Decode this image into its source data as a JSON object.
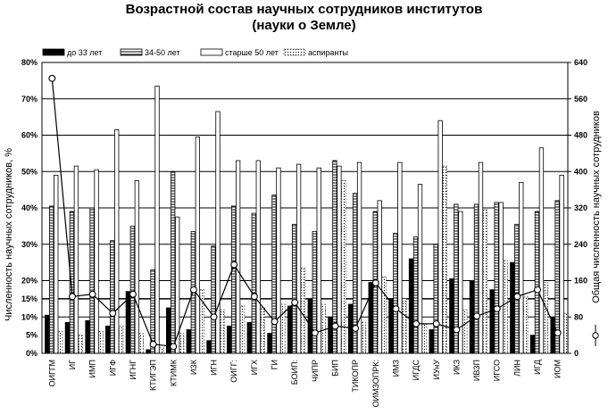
{
  "chart_data": {
    "type": "bar",
    "title": [
      "Возрастной состав научных сотрудников институтов",
      "(науки о Земле)"
    ],
    "ylabel": "Численность научных сотрудников, %",
    "y2label": "Общая численность научных сотрудников",
    "ylim": [
      0,
      80
    ],
    "y2lim": [
      0,
      640
    ],
    "yticks": [
      "0%",
      "5%",
      "10%",
      "15%",
      "20%",
      "30%",
      "40%",
      "50%",
      "60%",
      "70%",
      "80%"
    ],
    "y2ticks": [
      "0",
      "80",
      "160",
      "240",
      "320",
      "400",
      "480",
      "560",
      "640"
    ],
    "reference_line": 15,
    "categories": [
      "ОИГГМ",
      "ИГ",
      "ИМП",
      "ИГФ",
      "ИГНГ",
      "КТИГЭП",
      "КТИМК",
      "ИЗК",
      "ИГН",
      "ОИГГ:",
      "ИГХ",
      "ГИ",
      "БОИП:",
      "ЧИПР",
      "БИП",
      "ТИКОПР",
      "ОИМЗОПРК:",
      "ИМЗ",
      "ИГДС",
      "ИУнУ",
      "ИКЗ",
      "ИВЗП",
      "ИГСО",
      "ЛИН",
      "ИГД",
      "ИОМ"
    ],
    "series": [
      {
        "name": "до 33 лет",
        "values": [
          10.5,
          8.5,
          9,
          7.5,
          17,
          1,
          12.5,
          6.5,
          3.5,
          7.5,
          8.5,
          5.5,
          13,
          15,
          10,
          13.5,
          19.5,
          15,
          26,
          6.5,
          20.5,
          20,
          17.5,
          25,
          5,
          10
        ]
      },
      {
        "name": "34-50 лет",
        "values": [
          40.5,
          39,
          40,
          31,
          35,
          23,
          50,
          33.5,
          29.5,
          40.5,
          38.5,
          43.5,
          35.5,
          33.5,
          53,
          44,
          39,
          33,
          32,
          30,
          41,
          41,
          41.5,
          35.5,
          39,
          42
        ]
      },
      {
        "name": "старше 50 лет",
        "values": [
          49,
          51.5,
          50.5,
          61.5,
          47.5,
          73.5,
          37.5,
          59.5,
          66.5,
          53,
          53,
          51,
          52,
          51,
          51.5,
          52.5,
          42,
          52.5,
          46.5,
          64,
          39,
          52.5,
          41.5,
          47,
          56.5,
          49
        ]
      },
      {
        "name": "аспиранты",
        "values": [
          6,
          5,
          6,
          7.5,
          5.5,
          1.5,
          5.5,
          17.5,
          12,
          13,
          12.5,
          13.5,
          23.5,
          13.5,
          47.5,
          8.5,
          21,
          15,
          8,
          51.5,
          12,
          39.5,
          25.5,
          15.5,
          19.5,
          11
        ]
      },
      {
        "name": "Общая численность научных сотрудников",
        "axis": "right",
        "values": [
          605,
          125,
          130,
          88,
          130,
          20,
          15,
          140,
          80,
          195,
          125,
          70,
          112,
          45,
          60,
          55,
          155,
          98,
          65,
          65,
          52,
          82,
          98,
          125,
          140,
          45
        ]
      }
    ]
  }
}
